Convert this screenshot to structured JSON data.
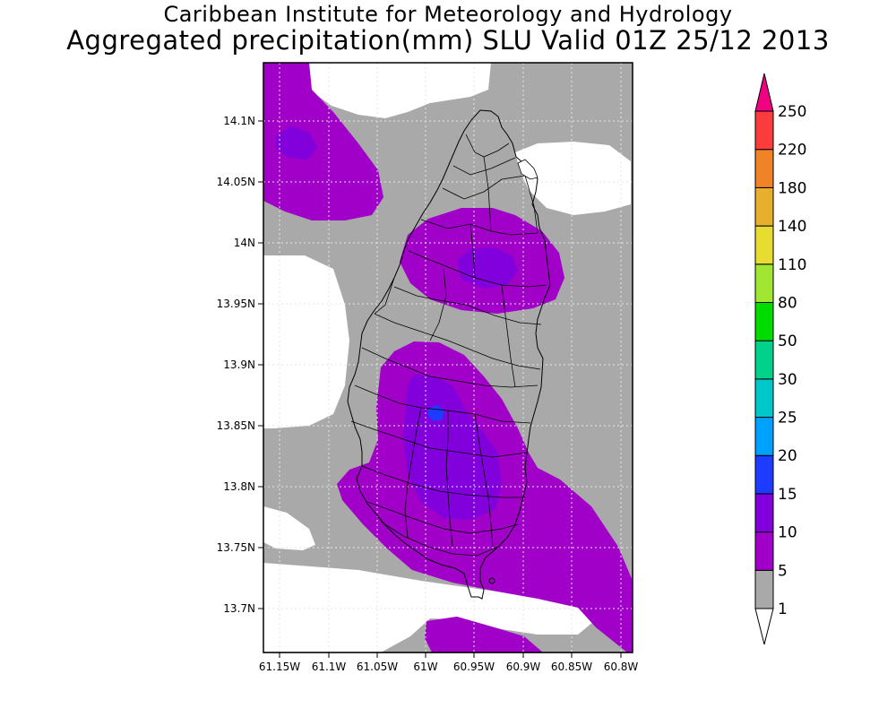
{
  "header": {
    "line1": "Caribbean Institute for Meteorology and Hydrology",
    "line2": "Aggregated precipitation(mm) SLU Valid 01Z 25/12 2013"
  },
  "map": {
    "lat_ticks": [
      "14.1N",
      "14.05N",
      "14N",
      "13.95N",
      "13.9N",
      "13.85N",
      "13.8N",
      "13.75N",
      "13.7N"
    ],
    "lon_ticks": [
      "61.15W",
      "61.1W",
      "61.05W",
      "61W",
      "60.95W",
      "60.9W",
      "60.85W",
      "60.8W"
    ]
  },
  "colorbar": {
    "labels": [
      "1",
      "5",
      "10",
      "15",
      "20",
      "25",
      "30",
      "50",
      "80",
      "110",
      "140",
      "180",
      "220",
      "250"
    ],
    "colors": [
      "#a9a9a9",
      "#a000c8",
      "#8200dc",
      "#1e3cff",
      "#00a0ff",
      "#00c8c8",
      "#00d28c",
      "#00dc00",
      "#a0e632",
      "#e6dc32",
      "#e6af2d",
      "#f08228",
      "#fa3c3c",
      "#f00082"
    ],
    "under_color": "#ffffff",
    "over_color": "#f00082"
  }
}
